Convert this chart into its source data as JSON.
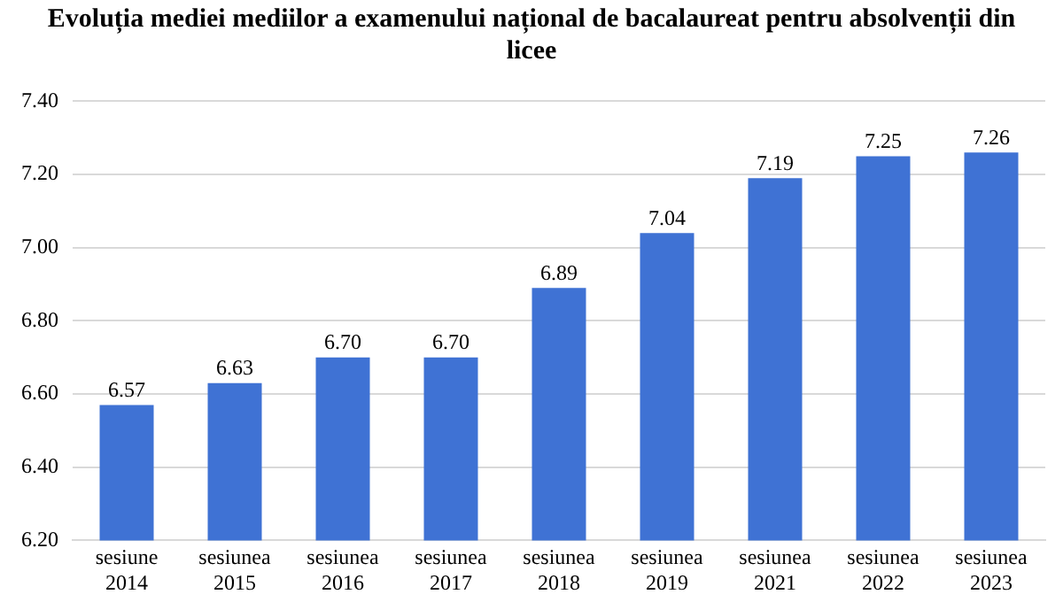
{
  "chart_data": {
    "type": "bar",
    "title": "Evoluția mediei mediilor a examenului național de bacalaureat pentru absolvenții din licee",
    "categories": [
      "sesiune 2014",
      "sesiunea 2015",
      "sesiunea 2016",
      "sesiunea 2017",
      "sesiunea 2018",
      "sesiunea 2019",
      "sesiunea 2021",
      "sesiunea 2022",
      "sesiunea 2023"
    ],
    "values": [
      6.57,
      6.63,
      6.7,
      6.7,
      6.89,
      7.04,
      7.19,
      7.25,
      7.26
    ],
    "value_labels": [
      "6.57",
      "6.63",
      "6.70",
      "6.70",
      "6.89",
      "7.04",
      "7.19",
      "7.25",
      "7.26"
    ],
    "color": "#3f72d4",
    "ylim": [
      6.2,
      7.4
    ],
    "yticks": [
      {
        "value": 6.2,
        "label": "6.20"
      },
      {
        "value": 6.4,
        "label": "6.40"
      },
      {
        "value": 6.6,
        "label": "6.60"
      },
      {
        "value": 6.8,
        "label": "6.80"
      },
      {
        "value": 7.0,
        "label": "7.00"
      },
      {
        "value": 7.2,
        "label": "7.20"
      },
      {
        "value": 7.4,
        "label": "7.40"
      }
    ],
    "grid": "y"
  }
}
